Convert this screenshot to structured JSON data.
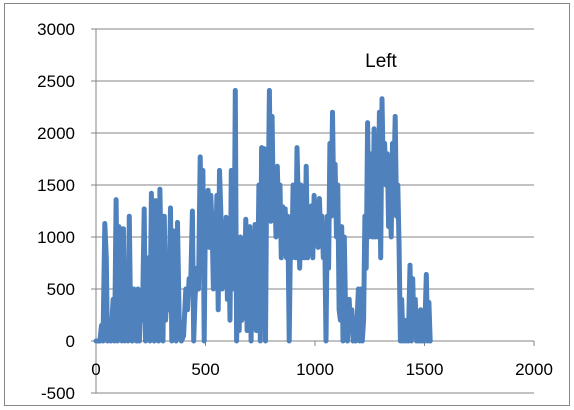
{
  "colors": {
    "series": "#4F81BD",
    "grid": "#868686",
    "axis": "#868686",
    "frame": "#868686"
  },
  "chart_data": {
    "type": "line",
    "title": "Left",
    "xlabel": "",
    "ylabel": "",
    "xlim": [
      0,
      2000
    ],
    "ylim": [
      -500,
      3000
    ],
    "x_ticks": [
      0,
      500,
      1000,
      1500,
      2000
    ],
    "y_ticks": [
      -500,
      0,
      500,
      1000,
      1500,
      2000,
      2500,
      3000
    ],
    "grid": "horizontal",
    "legend": "none",
    "series": [
      {
        "points": [
          [
            0,
            0
          ],
          [
            18,
            0
          ],
          [
            25,
            150
          ],
          [
            32,
            0
          ],
          [
            40,
            1130
          ],
          [
            47,
            800
          ],
          [
            52,
            0
          ],
          [
            60,
            200
          ],
          [
            68,
            0
          ],
          [
            78,
            400
          ],
          [
            85,
            0
          ],
          [
            92,
            1360
          ],
          [
            98,
            0
          ],
          [
            105,
            1100
          ],
          [
            112,
            500
          ],
          [
            118,
            0
          ],
          [
            125,
            1080
          ],
          [
            132,
            0
          ],
          [
            140,
            500
          ],
          [
            146,
            0
          ],
          [
            152,
            1200
          ],
          [
            158,
            200
          ],
          [
            165,
            0
          ],
          [
            172,
            500
          ],
          [
            178,
            200
          ],
          [
            185,
            0
          ],
          [
            192,
            500
          ],
          [
            198,
            0
          ],
          [
            205,
            400
          ],
          [
            212,
            200
          ],
          [
            220,
            1270
          ],
          [
            226,
            0
          ],
          [
            232,
            500
          ],
          [
            240,
            800
          ],
          [
            246,
            0
          ],
          [
            253,
            1420
          ],
          [
            260,
            300
          ],
          [
            266,
            0
          ],
          [
            272,
            1350
          ],
          [
            280,
            400
          ],
          [
            286,
            0
          ],
          [
            292,
            1460
          ],
          [
            300,
            500
          ],
          [
            306,
            0
          ],
          [
            312,
            1200
          ],
          [
            318,
            200
          ],
          [
            325,
            500
          ],
          [
            332,
            300
          ],
          [
            340,
            1280
          ],
          [
            346,
            0
          ],
          [
            352,
            1060
          ],
          [
            360,
            500
          ],
          [
            366,
            0
          ],
          [
            372,
            1140
          ],
          [
            380,
            200
          ],
          [
            390,
            0
          ],
          [
            400,
            50
          ],
          [
            410,
            500
          ],
          [
            418,
            300
          ],
          [
            425,
            600
          ],
          [
            432,
            500
          ],
          [
            440,
            1250
          ],
          [
            446,
            0
          ],
          [
            452,
            400
          ],
          [
            460,
            700
          ],
          [
            468,
            500
          ],
          [
            476,
            1770
          ],
          [
            482,
            900
          ],
          [
            488,
            1640
          ],
          [
            494,
            0
          ],
          [
            500,
            1300
          ],
          [
            506,
            1000
          ],
          [
            512,
            1450
          ],
          [
            518,
            900
          ],
          [
            524,
            1400
          ],
          [
            530,
            1100
          ],
          [
            536,
            500
          ],
          [
            540,
            1200
          ],
          [
            546,
            800
          ],
          [
            552,
            1400
          ],
          [
            558,
            300
          ],
          [
            564,
            1640
          ],
          [
            570,
            1250
          ],
          [
            576,
            500
          ],
          [
            582,
            1000
          ],
          [
            588,
            700
          ],
          [
            594,
            1190
          ],
          [
            600,
            400
          ],
          [
            606,
            1080
          ],
          [
            612,
            200
          ],
          [
            618,
            1640
          ],
          [
            624,
            600
          ],
          [
            630,
            500
          ],
          [
            636,
            2410
          ],
          [
            642,
            0
          ],
          [
            648,
            600
          ],
          [
            654,
            100
          ],
          [
            660,
            1000
          ],
          [
            666,
            200
          ],
          [
            672,
            700
          ],
          [
            678,
            600
          ],
          [
            684,
            1170
          ],
          [
            690,
            100
          ],
          [
            696,
            900
          ],
          [
            702,
            1100
          ],
          [
            708,
            0
          ],
          [
            714,
            1000
          ],
          [
            720,
            800
          ],
          [
            726,
            1120
          ],
          [
            732,
            100
          ],
          [
            738,
            500
          ],
          [
            744,
            1500
          ],
          [
            750,
            0
          ],
          [
            756,
            1860
          ],
          [
            762,
            1500
          ],
          [
            768,
            1850
          ],
          [
            774,
            0
          ],
          [
            780,
            1700
          ],
          [
            786,
            1250
          ],
          [
            792,
            2410
          ],
          [
            798,
            1150
          ],
          [
            804,
            2160
          ],
          [
            810,
            1200
          ],
          [
            816,
            1500
          ],
          [
            822,
            1000
          ],
          [
            828,
            1680
          ],
          [
            834,
            1200
          ],
          [
            840,
            1500
          ],
          [
            846,
            800
          ],
          [
            852,
            1290
          ],
          [
            858,
            1000
          ],
          [
            864,
            1270
          ],
          [
            870,
            800
          ],
          [
            876,
            1200
          ],
          [
            882,
            0
          ],
          [
            888,
            1000
          ],
          [
            894,
            800
          ],
          [
            900,
            1500
          ],
          [
            906,
            1000
          ],
          [
            912,
            800
          ],
          [
            918,
            1860
          ],
          [
            924,
            1300
          ],
          [
            930,
            700
          ],
          [
            936,
            1500
          ],
          [
            942,
            800
          ],
          [
            948,
            1200
          ],
          [
            954,
            800
          ],
          [
            960,
            1680
          ],
          [
            966,
            800
          ],
          [
            972,
            1200
          ],
          [
            978,
            1000
          ],
          [
            984,
            1300
          ],
          [
            990,
            800
          ],
          [
            996,
            1400
          ],
          [
            1002,
            1100
          ],
          [
            1008,
            1240
          ],
          [
            1014,
            900
          ],
          [
            1020,
            1370
          ],
          [
            1026,
            1000
          ],
          [
            1032,
            1200
          ],
          [
            1038,
            800
          ],
          [
            1044,
            1100
          ],
          [
            1050,
            0
          ],
          [
            1056,
            1200
          ],
          [
            1062,
            700
          ],
          [
            1068,
            1900
          ],
          [
            1074,
            1200
          ],
          [
            1080,
            2200
          ],
          [
            1086,
            1300
          ],
          [
            1092,
            1700
          ],
          [
            1098,
            1000
          ],
          [
            1104,
            1500
          ],
          [
            1110,
            300
          ],
          [
            1116,
            200
          ],
          [
            1122,
            1100
          ],
          [
            1128,
            0
          ],
          [
            1134,
            1000
          ],
          [
            1140,
            200
          ],
          [
            1148,
            0
          ],
          [
            1156,
            400
          ],
          [
            1162,
            100
          ],
          [
            1168,
            300
          ],
          [
            1174,
            0
          ],
          [
            1180,
            200
          ],
          [
            1186,
            0
          ],
          [
            1192,
            200
          ],
          [
            1198,
            500
          ],
          [
            1204,
            0
          ],
          [
            1210,
            500
          ],
          [
            1216,
            0
          ],
          [
            1222,
            200
          ],
          [
            1228,
            1200
          ],
          [
            1234,
            700
          ],
          [
            1240,
            2100
          ],
          [
            1246,
            1000
          ],
          [
            1252,
            1800
          ],
          [
            1258,
            1300
          ],
          [
            1264,
            1000
          ],
          [
            1270,
            2040
          ],
          [
            1276,
            1000
          ],
          [
            1282,
            1800
          ],
          [
            1288,
            1000
          ],
          [
            1294,
            2200
          ],
          [
            1300,
            800
          ],
          [
            1306,
            2330
          ],
          [
            1312,
            1600
          ],
          [
            1318,
            1900
          ],
          [
            1324,
            1500
          ],
          [
            1330,
            1800
          ],
          [
            1336,
            1100
          ],
          [
            1342,
            1600
          ],
          [
            1348,
            1000
          ],
          [
            1354,
            1900
          ],
          [
            1360,
            1500
          ],
          [
            1366,
            2160
          ],
          [
            1372,
            1200
          ],
          [
            1378,
            1500
          ],
          [
            1384,
            900
          ],
          [
            1390,
            0
          ],
          [
            1396,
            400
          ],
          [
            1402,
            0
          ],
          [
            1408,
            200
          ],
          [
            1414,
            0
          ],
          [
            1420,
            100
          ],
          [
            1426,
            0
          ],
          [
            1434,
            730
          ],
          [
            1440,
            0
          ],
          [
            1446,
            600
          ],
          [
            1452,
            100
          ],
          [
            1458,
            400
          ],
          [
            1464,
            0
          ],
          [
            1470,
            200
          ],
          [
            1476,
            0
          ],
          [
            1482,
            300
          ],
          [
            1488,
            0
          ],
          [
            1494,
            150
          ],
          [
            1500,
            0
          ],
          [
            1508,
            640
          ],
          [
            1514,
            0
          ],
          [
            1520,
            370
          ],
          [
            1526,
            0
          ]
        ]
      }
    ]
  }
}
